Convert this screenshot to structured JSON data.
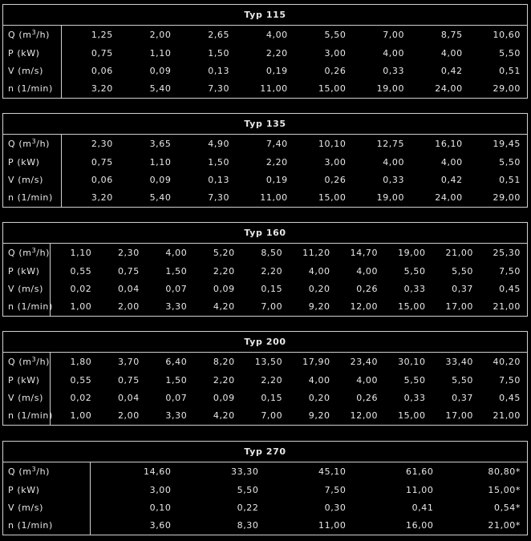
{
  "labels": {
    "q_prefix": "Q (m",
    "q_sup": "3",
    "q_suffix": "/h)",
    "p": "P (kW)",
    "v": "V (m/s)",
    "n": "n (1/min)"
  },
  "tables": [
    {
      "title": "Typ 115",
      "Q": [
        "1,25",
        "2,00",
        "2,65",
        "4,00",
        "5,50",
        "7,00",
        "8,75",
        "10,60"
      ],
      "P": [
        "0,75",
        "1,10",
        "1,50",
        "2,20",
        "3,00",
        "4,00",
        "4,00",
        "5,50"
      ],
      "V": [
        "0,06",
        "0,09",
        "0,13",
        "0,19",
        "0,26",
        "0,33",
        "0,42",
        "0,51"
      ],
      "n": [
        "3,20",
        "5,40",
        "7,30",
        "11,00",
        "15,00",
        "19,00",
        "24,00",
        "29,00"
      ]
    },
    {
      "title": "Typ 135",
      "Q": [
        "2,30",
        "3,65",
        "4,90",
        "7,40",
        "10,10",
        "12,75",
        "16,10",
        "19,45"
      ],
      "P": [
        "0,75",
        "1,10",
        "1,50",
        "2,20",
        "3,00",
        "4,00",
        "4,00",
        "5,50"
      ],
      "V": [
        "0,06",
        "0,09",
        "0,13",
        "0,19",
        "0,26",
        "0,33",
        "0,42",
        "0,51"
      ],
      "n": [
        "3,20",
        "5,40",
        "7,30",
        "11,00",
        "15,00",
        "19,00",
        "24,00",
        "29,00"
      ]
    },
    {
      "title": "Typ 160",
      "Q": [
        "1,10",
        "2,30",
        "4,00",
        "5,20",
        "8,50",
        "11,20",
        "14,70",
        "19,00",
        "21,00",
        "25,30"
      ],
      "P": [
        "0,55",
        "0,75",
        "1,50",
        "2,20",
        "2,20",
        "4,00",
        "4,00",
        "5,50",
        "5,50",
        "7,50"
      ],
      "V": [
        "0,02",
        "0,04",
        "0,07",
        "0,09",
        "0,15",
        "0,20",
        "0,26",
        "0,33",
        "0,37",
        "0,45"
      ],
      "n": [
        "1,00",
        "2,00",
        "3,30",
        "4,20",
        "7,00",
        "9,20",
        "12,00",
        "15,00",
        "17,00",
        "21,00"
      ]
    },
    {
      "title": "Typ 200",
      "Q": [
        "1,80",
        "3,70",
        "6,40",
        "8,20",
        "13,50",
        "17,90",
        "23,40",
        "30,10",
        "33,40",
        "40,20"
      ],
      "P": [
        "0,55",
        "0,75",
        "1,50",
        "2,20",
        "2,20",
        "4,00",
        "4,00",
        "5,50",
        "5,50",
        "7,50"
      ],
      "V": [
        "0,02",
        "0,04",
        "0,07",
        "0,09",
        "0,15",
        "0,20",
        "0,26",
        "0,33",
        "0,37",
        "0,45"
      ],
      "n": [
        "1,00",
        "2,00",
        "3,30",
        "4,20",
        "7,00",
        "9,20",
        "12,00",
        "15,00",
        "17,00",
        "21,00"
      ]
    },
    {
      "title": "Typ 270",
      "Q": [
        "14,60",
        "33,30",
        "45,10",
        "61,60",
        "80,80*"
      ],
      "P": [
        "3,00",
        "5,50",
        "7,50",
        "11,00",
        "15,00*"
      ],
      "V": [
        "0,10",
        "0,22",
        "0,30",
        "0,41",
        "0,54*"
      ],
      "n": [
        "3,60",
        "8,30",
        "11,00",
        "16,00",
        "21,00*"
      ]
    }
  ]
}
